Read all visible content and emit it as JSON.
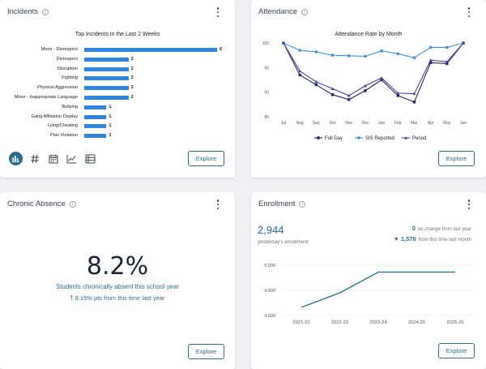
{
  "incidents": {
    "title": "Incidents",
    "info_glyph": "i",
    "explore_label": "Explore",
    "toolbar_icons": [
      "bar-chart-icon",
      "hash-icon",
      "calendar-icon",
      "trend-chart-icon",
      "table-icon"
    ]
  },
  "attendance": {
    "title": "Attendance",
    "info_glyph": "i",
    "explore_label": "Explore"
  },
  "chronic": {
    "title": "Chronic Absence",
    "info_glyph": "i",
    "value": "8.2%",
    "subtitle": "Students chronically absent this school year",
    "change_arrow": "🡑",
    "change_text": "8.15% pts from this time last year",
    "explore_label": "Explore"
  },
  "enrollment": {
    "title": "Enrollment",
    "info_glyph": "i",
    "count": "2,944",
    "caption": "yesterday's enrollment",
    "change_last_year_value": "0",
    "change_last_year_text": "no change from last year",
    "change_last_month_arrow": "▼",
    "change_last_month_value": "1,578",
    "change_last_month_text": "from this time last month",
    "explore_label": "Explore"
  },
  "colors": {
    "accent": "#2b6c8c",
    "bar": "#2e86de",
    "full_day": "#1f2a5e",
    "sis": "#3b8fd9",
    "period": "#4a3fa8",
    "enrollment_line": "#1f6e8c"
  },
  "chart_data": [
    {
      "type": "bar",
      "orientation": "horizontal",
      "title": "Top Incidents in the Last 2 Weeks",
      "categories": [
        "Minor - Disrespect",
        "Disrespect",
        "Disruption",
        "Fighting",
        "Physical Aggression",
        "Minor - Inappropriate Language",
        "Bullying",
        "Gang Affiliation Display",
        "Lying/Cheating",
        "Plan Violation"
      ],
      "values": [
        6,
        2,
        2,
        2,
        2,
        2,
        1,
        1,
        1,
        1
      ],
      "xlim": [
        0,
        6
      ]
    },
    {
      "type": "line",
      "title": "Attendance Rate by Month",
      "x": [
        "Jul",
        "Aug",
        "Sep",
        "Oct",
        "Nov",
        "Dec",
        "Jan",
        "Feb",
        "Mar",
        "Apr",
        "May",
        "Jun"
      ],
      "yticks": [
        85,
        90,
        95,
        100
      ],
      "ylim": [
        85,
        100
      ],
      "series": [
        {
          "name": "Full Day",
          "values": [
            100,
            93.5,
            91.5,
            89.5,
            88.5,
            90.3,
            92.5,
            89.3,
            88,
            96,
            95.8,
            100
          ]
        },
        {
          "name": "SIS Reported",
          "values": [
            100,
            98.5,
            98.2,
            97.5,
            97.4,
            97.3,
            98.4,
            97.8,
            97.0,
            99.1,
            99.1,
            100
          ]
        },
        {
          "name": "Period",
          "values": [
            100,
            94.3,
            92.1,
            90.7,
            89.3,
            91.3,
            92.9,
            89.8,
            89.7,
            96.5,
            96.2,
            100
          ]
        }
      ]
    },
    {
      "type": "line",
      "title": "",
      "x": [
        "2021-22",
        "2022-23",
        "2023-24",
        "2024-25",
        "2025-26"
      ],
      "yticks": [
        4600,
        4800,
        5000
      ],
      "ytick_labels": [
        "4,600",
        "4,800",
        "5,000"
      ],
      "ylim": [
        4600,
        5000
      ],
      "series": [
        {
          "name": "Enrollment",
          "values": [
            4665,
            4780,
            4945,
            4945,
            4945
          ]
        }
      ]
    }
  ]
}
